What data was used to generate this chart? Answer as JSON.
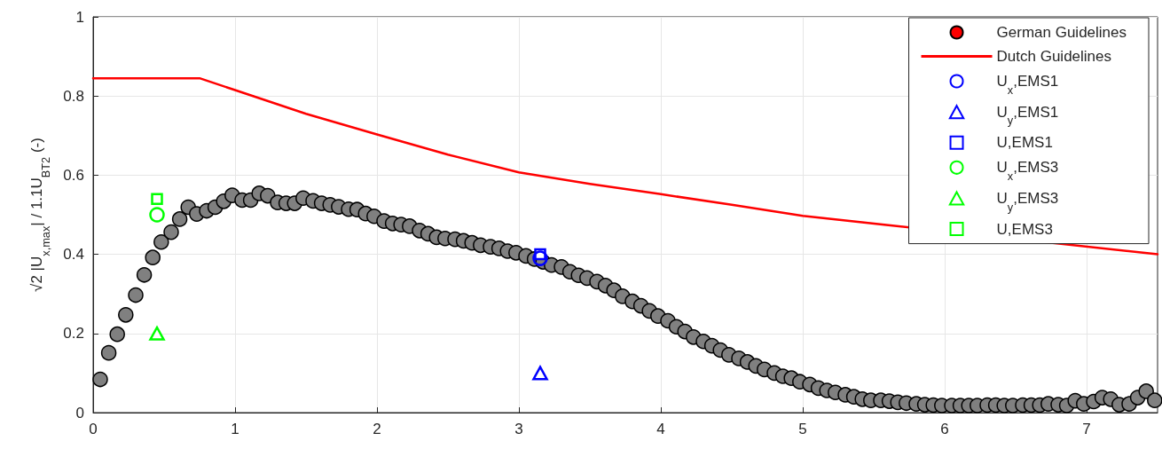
{
  "chart_data": {
    "type": "scatter",
    "ylabel": "√2 |U$_{x,max}$| / 1.1U$_{BT2}$ (-)",
    "xlim": [
      0,
      7.5
    ],
    "xticks": [
      0,
      1,
      2,
      3,
      4,
      5,
      6,
      7
    ],
    "ylim": [
      0,
      1
    ],
    "yticks": [
      0,
      0.2,
      0.4,
      0.6,
      0.8,
      1
    ],
    "grid": true,
    "legend": "top right",
    "series": [
      {
        "name": "German Guidelines",
        "marker": "circle",
        "color": "#ff0000"
      },
      {
        "name": "Dutch Guidelines",
        "type": "line",
        "marker": "none",
        "line_style": "solid",
        "color": "#ff0000",
        "x": [
          0,
          0.75,
          1,
          1.5,
          2,
          2.5,
          3,
          3.5,
          4,
          4.5,
          5,
          7.5
        ],
        "values": [
          0.845,
          0.845,
          0.815,
          0.755,
          0.703,
          0.652,
          0.607,
          0.578,
          0.552,
          0.525,
          0.497,
          0.4
        ]
      },
      {
        "name": "U$_{x}$,EMS1",
        "marker": "circle",
        "color": "#0000ff",
        "x": [
          3.15
        ],
        "values": [
          0.39
        ]
      },
      {
        "name": "U$_{y}$,EMS1",
        "marker": "triangle",
        "color": "#0000ff",
        "x": [
          3.15
        ],
        "values": [
          0.1
        ]
      },
      {
        "name": "U,EMS1",
        "marker": "square",
        "color": "#0000ff",
        "x": [
          3.15
        ],
        "values": [
          0.4
        ]
      },
      {
        "name": "U$_{x}$,EMS3",
        "marker": "circle",
        "color": "#00ff00",
        "x": [
          0.45
        ],
        "values": [
          0.5
        ]
      },
      {
        "name": "U$_{y}$,EMS3",
        "marker": "triangle",
        "color": "#00ff00",
        "x": [
          0.45
        ],
        "values": [
          0.2
        ]
      },
      {
        "name": "U,EMS3",
        "marker": "square",
        "color": "#00ff00",
        "x": [
          0.45
        ],
        "values": [
          0.54
        ]
      },
      {
        "marker": "circle",
        "color": "#808080",
        "x": [
          0.05,
          0.11,
          0.17,
          0.23,
          0.3,
          0.36,
          0.42,
          0.48,
          0.55,
          0.61,
          0.67,
          0.73,
          0.8,
          0.86,
          0.92,
          0.98,
          1.05,
          1.11,
          1.17,
          1.23,
          1.3,
          1.36,
          1.42,
          1.48,
          1.55,
          1.61,
          1.67,
          1.73,
          1.8,
          1.86,
          1.92,
          1.98,
          2.05,
          2.11,
          2.17,
          2.23,
          2.3,
          2.36,
          2.42,
          2.48,
          2.55,
          2.61,
          2.67,
          2.73,
          2.8,
          2.86,
          2.92,
          2.98,
          3.05,
          3.11,
          3.17,
          3.23,
          3.3,
          3.36,
          3.42,
          3.48,
          3.55,
          3.61,
          3.67,
          3.73,
          3.8,
          3.86,
          3.92,
          3.98,
          4.05,
          4.11,
          4.17,
          4.23,
          4.3,
          4.36,
          4.42,
          4.48,
          4.55,
          4.61,
          4.67,
          4.73,
          4.8,
          4.86,
          4.92,
          4.98,
          5.05,
          5.11,
          5.17,
          5.23,
          5.3,
          5.36,
          5.42,
          5.48,
          5.55,
          5.61,
          5.67,
          5.73,
          5.8,
          5.86,
          5.92,
          5.98,
          6.05,
          6.11,
          6.17,
          6.23,
          6.3,
          6.36,
          6.42,
          6.48,
          6.55,
          6.61,
          6.67,
          6.73,
          6.8,
          6.86,
          6.92,
          6.98,
          7.05,
          7.11,
          7.17,
          7.23,
          7.3,
          7.36,
          7.42,
          7.48
        ],
        "values": [
          0.084,
          0.151,
          0.198,
          0.247,
          0.297,
          0.348,
          0.392,
          0.431,
          0.456,
          0.489,
          0.519,
          0.502,
          0.51,
          0.519,
          0.534,
          0.549,
          0.537,
          0.537,
          0.554,
          0.548,
          0.531,
          0.529,
          0.529,
          0.542,
          0.535,
          0.529,
          0.525,
          0.52,
          0.514,
          0.513,
          0.503,
          0.496,
          0.484,
          0.478,
          0.475,
          0.471,
          0.46,
          0.452,
          0.443,
          0.44,
          0.438,
          0.434,
          0.429,
          0.423,
          0.419,
          0.415,
          0.408,
          0.404,
          0.396,
          0.388,
          0.381,
          0.373,
          0.368,
          0.356,
          0.347,
          0.34,
          0.331,
          0.321,
          0.309,
          0.294,
          0.281,
          0.27,
          0.257,
          0.244,
          0.232,
          0.217,
          0.205,
          0.191,
          0.18,
          0.169,
          0.158,
          0.146,
          0.137,
          0.128,
          0.118,
          0.109,
          0.1,
          0.092,
          0.087,
          0.078,
          0.071,
          0.062,
          0.056,
          0.051,
          0.045,
          0.04,
          0.034,
          0.031,
          0.031,
          0.029,
          0.026,
          0.024,
          0.022,
          0.02,
          0.019,
          0.018,
          0.018,
          0.018,
          0.018,
          0.018,
          0.019,
          0.019,
          0.018,
          0.018,
          0.019,
          0.019,
          0.019,
          0.022,
          0.02,
          0.018,
          0.03,
          0.022,
          0.028,
          0.038,
          0.034,
          0.02,
          0.022,
          0.038,
          0.054,
          0.031
        ]
      }
    ]
  }
}
